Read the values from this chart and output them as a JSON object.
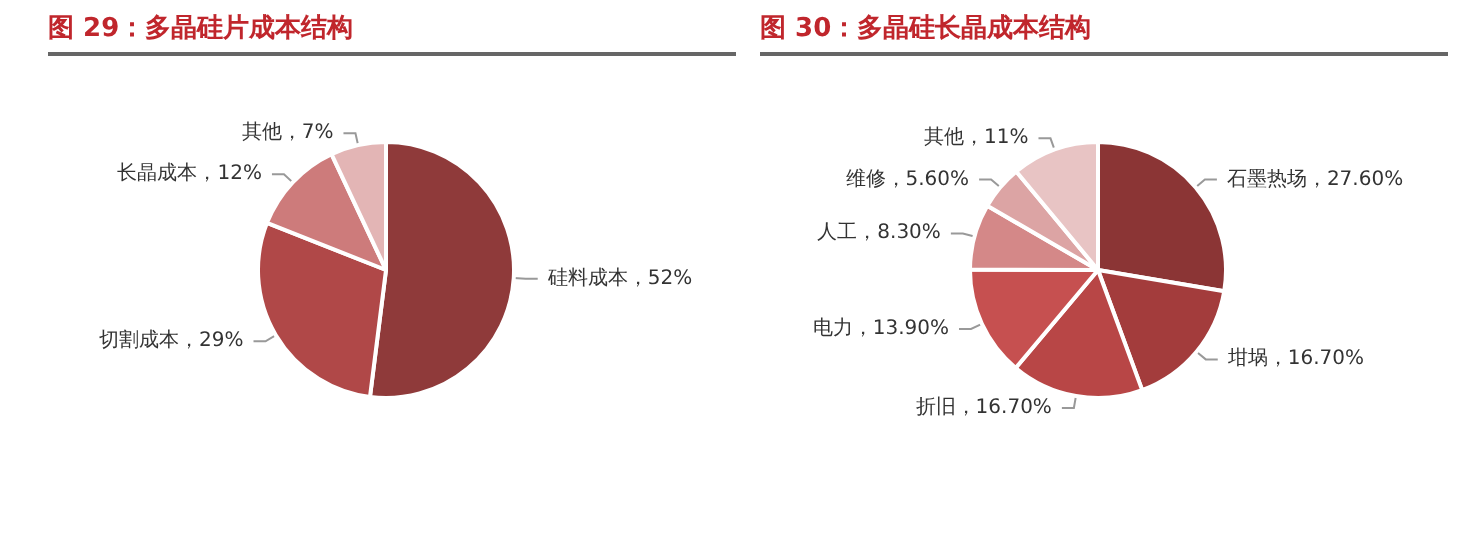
{
  "chart_data": [
    {
      "type": "pie",
      "title": "图 29：多晶硅片成本结构",
      "categories": [
        "硅料成本",
        "切割成本",
        "长晶成本",
        "其他"
      ],
      "values": [
        52,
        29,
        12,
        7
      ],
      "value_labels": [
        "52%",
        "29%",
        "12%",
        "7%"
      ],
      "colors": [
        "#8f3a3a",
        "#b04848",
        "#cd7b7b",
        "#e3b5b5"
      ]
    },
    {
      "type": "pie",
      "title": "图 30：多晶硅长晶成本结构",
      "categories": [
        "石墨热场",
        "坩埚",
        "折旧",
        "电力",
        "人工",
        "维修",
        "其他"
      ],
      "values": [
        27.6,
        16.7,
        16.7,
        13.9,
        8.3,
        5.6,
        11
      ],
      "value_labels": [
        "27.60%",
        "16.70%",
        "16.70%",
        "13.90%",
        "8.30%",
        "5.60%",
        "11%"
      ],
      "colors": [
        "#8b3535",
        "#a33c3c",
        "#b84646",
        "#c65050",
        "#d48888",
        "#dca4a4",
        "#e8c4c4"
      ]
    }
  ]
}
